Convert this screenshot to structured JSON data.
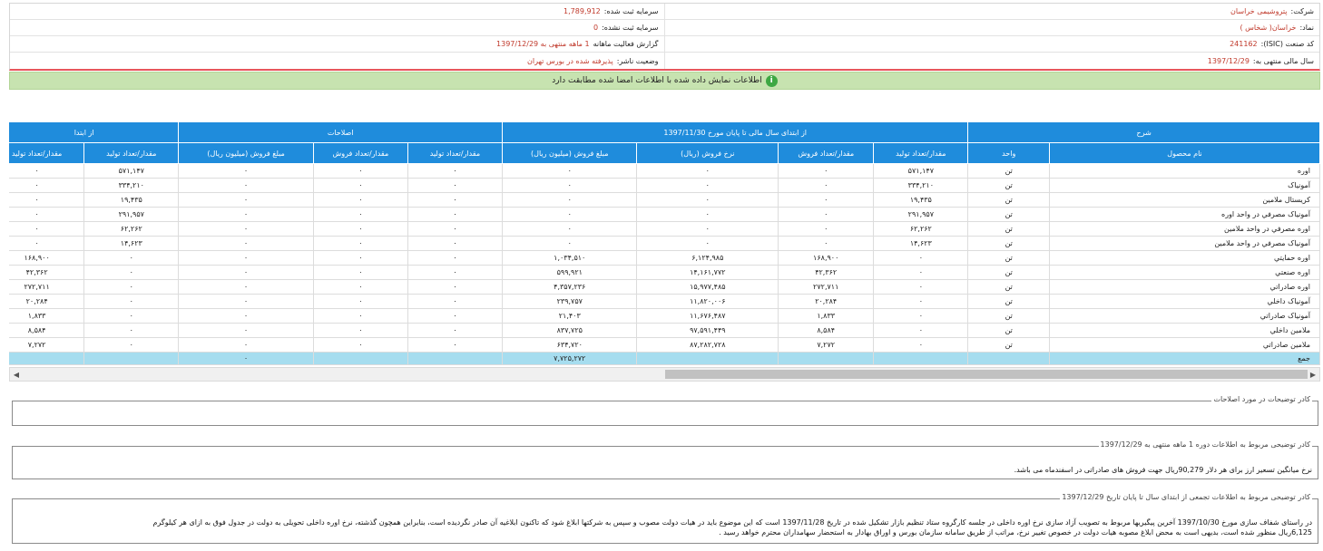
{
  "info": {
    "company_label": "شرکت:",
    "company_value": "پتروشیمی خراسان",
    "capital_label": "سرمایه ثبت شده:",
    "capital_value": "1,789,912",
    "symbol_label": "نماد:",
    "symbol_value": "خراسان( شخاس )",
    "unregistered_label": "سرمایه ثبت نشده:",
    "unregistered_value": "0",
    "isic_label": "کد صنعت (ISIC):",
    "isic_value": "241162",
    "report_label": "گزارش فعالیت ماهانه",
    "report_value": "1 ماهه منتهی به 1397/12/29",
    "fiscal_label": "سال مالی منتهی به:",
    "fiscal_value": "1397/12/29",
    "publisher_label": "وضعیت ناشر:",
    "publisher_value": "پذیرفته شده در بورس تهران"
  },
  "banner": {
    "text": "اطلاعات نمایش داده شده با اطلاعات امضا شده مطابقت دارد"
  },
  "table": {
    "group_headers": {
      "description": "شرح",
      "from_start": "از ابتدای سال مالی تا پایان مورخ 1397/11/30",
      "corrections": "اصلاحات",
      "from_start2": "از ابتدا"
    },
    "col_headers": {
      "product": "نام محصول",
      "unit": "واحد",
      "prod_qty": "مقدار/تعداد تولید",
      "sales_qty": "مقدار/تعداد فروش",
      "rate": "نرخ فروش (ریال)",
      "amount": "مبلغ فروش (میلیون ریال)",
      "c_prod_qty": "مقدار/تعداد تولید",
      "c_sales_qty": "مقدار/تعداد فروش",
      "c_amount": "مبلغ فروش (میلیون ریال)",
      "n_prod_qty": "مقدار/تعداد تولید",
      "n_last": "مقدار/تعداد تولید"
    },
    "rows": [
      [
        "اوره",
        "تن",
        "۵۷۱,۱۴۷",
        "۰",
        "۰",
        "۰",
        "۰",
        "۰",
        "۰",
        "۵۷۱,۱۴۷",
        "۰"
      ],
      [
        "آمونیاک",
        "تن",
        "۳۳۴,۲۱۰",
        "۰",
        "۰",
        "۰",
        "۰",
        "۰",
        "۰",
        "۳۳۴,۲۱۰",
        "۰"
      ],
      [
        "کریستال ملامین",
        "تن",
        "۱۹,۴۳۵",
        "۰",
        "۰",
        "۰",
        "۰",
        "۰",
        "۰",
        "۱۹,۴۳۵",
        "۰"
      ],
      [
        "آمونیاک مصرفي در واحد اوره",
        "تن",
        "۲۹۱,۹۵۷",
        "۰",
        "۰",
        "۰",
        "۰",
        "۰",
        "۰",
        "۲۹۱,۹۵۷",
        "۰"
      ],
      [
        "اوره مصرفي در واحد ملامین",
        "تن",
        "۶۲,۲۶۲",
        "۰",
        "۰",
        "۰",
        "۰",
        "۰",
        "۰",
        "۶۲,۲۶۲",
        "۰"
      ],
      [
        "آمونیاک مصرفي در واحد ملامین",
        "تن",
        "۱۴,۶۲۳",
        "۰",
        "۰",
        "۰",
        "۰",
        "۰",
        "۰",
        "۱۴,۶۲۳",
        "۰"
      ],
      [
        "اوره حمايتي",
        "تن",
        "۰",
        "۱۶۸,۹۰۰",
        "۶,۱۲۴,۹۸۵",
        "۱,۰۳۴,۵۱۰",
        "۰",
        "۰",
        "۰",
        "۰",
        "۱۶۸,۹۰۰"
      ],
      [
        "اوره صنعتي",
        "تن",
        "۰",
        "۴۲,۳۶۲",
        "۱۴,۱۶۱,۷۷۲",
        "۵۹۹,۹۲۱",
        "۰",
        "۰",
        "۰",
        "۰",
        "۴۲,۳۶۲"
      ],
      [
        "اوره صادراتي",
        "تن",
        "۰",
        "۲۷۲,۷۱۱",
        "۱۵,۹۷۷,۴۸۵",
        "۴,۳۵۷,۲۳۶",
        "۰",
        "۰",
        "۰",
        "۰",
        "۲۷۲,۷۱۱"
      ],
      [
        "آمونیاک داخلي",
        "تن",
        "۰",
        "۲۰,۲۸۴",
        "۱۱,۸۲۰,۰۰۶",
        "۲۳۹,۷۵۷",
        "۰",
        "۰",
        "۰",
        "۰",
        "۲۰,۲۸۴"
      ],
      [
        "آمونیاک صادراتي",
        "تن",
        "۰",
        "۱,۸۳۳",
        "۱۱,۶۷۶,۴۸۷",
        "۲۱,۴۰۳",
        "۰",
        "۰",
        "۰",
        "۰",
        "۱,۸۳۳"
      ],
      [
        "ملامین داخلي",
        "تن",
        "۰",
        "۸,۵۸۴",
        "۹۷,۵۹۱,۴۴۹",
        "۸۳۷,۷۲۵",
        "۰",
        "۰",
        "۰",
        "۰",
        "۸,۵۸۴"
      ],
      [
        "ملامین صادراتي",
        "تن",
        "۰",
        "۷,۲۷۲",
        "۸۷,۲۸۲,۷۲۸",
        "۶۳۴,۷۲۰",
        "۰",
        "۰",
        "۰",
        "۰",
        "۷,۲۷۲"
      ]
    ],
    "total": {
      "label": "جمع",
      "amount": "۷,۷۲۵,۲۷۲",
      "c_amount": "۰"
    }
  },
  "boxes": {
    "corrections_legend": "کادر توضیحات در مورد اصلاحات",
    "monthly_legend": "کادر توضیحی مربوط به اطلاعات دوره 1 ماهه منتهی به 1397/12/29",
    "monthly_text": "نرخ میانگین تسعیر ارز برای هر دلار 90,279ریال جهت فروش های صادراتی در اسفندماه می باشد.",
    "cumulative_legend": "کادر توضیحی مربوط به اطلاعات تجمعی از ابتدای سال تا پایان تاریخ 1397/12/29",
    "cumulative_line1": "در راستای شفاف سازی مورخ 1397/10/30 آخرین پیگیریها مربوط به تصویب آزاد سازی نرخ اوره داخلی در جلسه کارگروه ستاد تنظیم بازار تشکیل شده در تاریخ 1397/11/28 است که این موضوع باید در هیات دولت مصوب و سپس به شرکتها ابلاغ شود که تاکنون ابلاغیه آن صادر نگردیده است، بنابراین همچون گذشته، نرخ اوره داخلی تحویلی به دولت در جدول فوق به ازای هر کیلوگرم",
    "cumulative_line2": "6,125ریال منظور شده است، بدیهی است به محض ابلاغ مصوبه هیات دولت در خصوص تغییر نرخ، مراتب از طریق سامانه سازمان بورس و اوراق بهادار به استحضار سهامداران محترم خواهد رسید ."
  }
}
